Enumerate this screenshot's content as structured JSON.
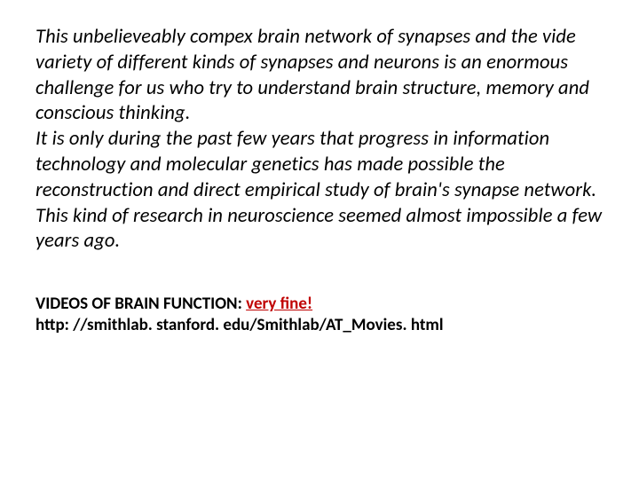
{
  "document": {
    "type": "document",
    "background_color": "#ffffff",
    "text_color": "#000000",
    "accent_color": "#c00000",
    "base_fontsize": 22.5,
    "footer_fontsize": 19,
    "main_paragraph": "This unbelieveably compex brain network of synapses and the vide variety of different kinds of synapses and neurons is an enormous challenge for us who try to understand brain structure, memory and conscious thinking.\nIt is only during the past few years that progress in information technology and molecular genetics has made possible the reconstruction and direct empirical study of brain's synapse network.\nThis kind of research in neuroscience seemed almost impossible a few years ago.",
    "footer": {
      "label": "VIDEOS OF BRAIN FUNCTION: ",
      "highlight": "very fine!",
      "url": "http: //smithlab. stanford. edu/Smithlab/AT_Movies. html"
    }
  }
}
